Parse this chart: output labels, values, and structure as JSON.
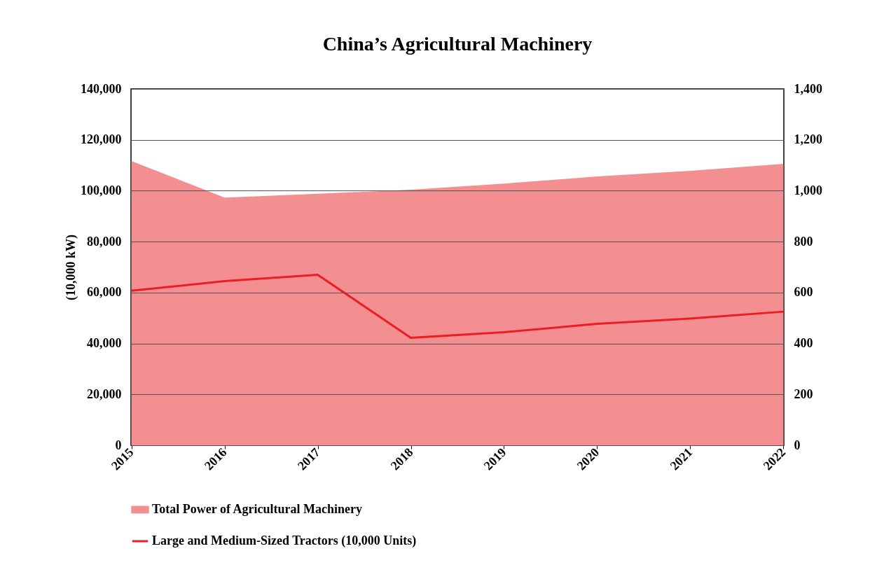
{
  "chart_data": {
    "type": "area",
    "title": "China’s Agricultural Machinery",
    "ylabel": "(10,000 kW)",
    "categories": [
      "2015",
      "2016",
      "2017",
      "2018",
      "2019",
      "2020",
      "2021",
      "2022"
    ],
    "series": [
      {
        "name": "Total Power of Agricultural Machinery",
        "color": "#f48f91",
        "values": [
          111700,
          97300,
          98800,
          100400,
          102800,
          105600,
          107800,
          110600
        ]
      },
      {
        "name": "Large and Medium-Sized Tractors (10,000 Units)",
        "type": "line",
        "color": "#ee1c25",
        "axis": "y2",
        "values": [
          607,
          645,
          670,
          422,
          444,
          477,
          498,
          525
        ]
      }
    ],
    "ylim": [
      0,
      140000
    ],
    "yticks": [
      0,
      {
        "value": 20000,
        "label": "20,000"
      },
      {
        "value": 40000,
        "label": "40,000"
      },
      {
        "value": 60000,
        "label": "60,000"
      },
      {
        "value": 80000,
        "label": "80,000"
      },
      {
        "value": 100000,
        "label": "100,000"
      },
      {
        "value": 120000,
        "label": "120,000"
      },
      {
        "value": 140000,
        "label": "140,000"
      }
    ],
    "y2lim": [
      0,
      1400
    ],
    "y2ticks": [
      0,
      200,
      400,
      600,
      800,
      {
        "value": 1000,
        "label": "1,000"
      },
      {
        "value": 1200,
        "label": "1,200"
      },
      {
        "value": 1400,
        "label": "1,400"
      }
    ],
    "grid": "y",
    "legend": "bottom",
    "marker": "none",
    "line_style": "solid"
  }
}
